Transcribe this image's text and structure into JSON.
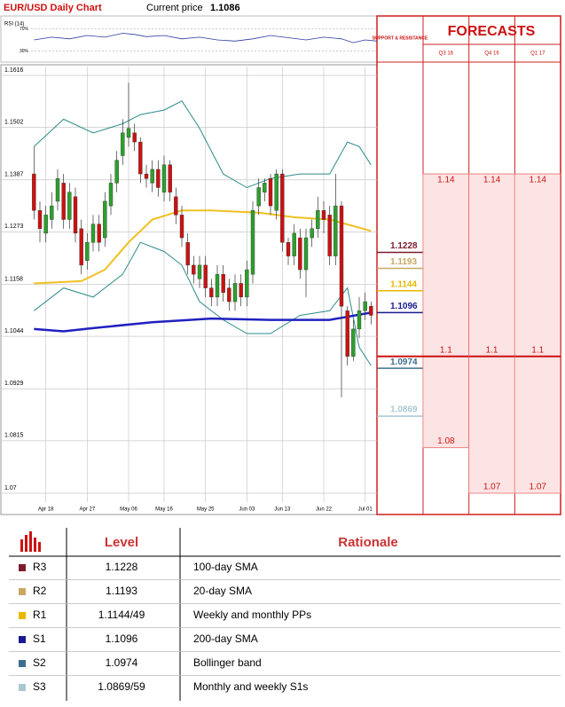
{
  "chart_data": {
    "type": "candlestick",
    "title": "EUR/USD Daily Chart",
    "current_price_label": "Current price",
    "current_price": 1.1086,
    "up_color": "#2ca02c",
    "down_color": "#cc1111",
    "ylim": [
      1.07,
      1.1616
    ],
    "yticks": [
      1.1616,
      1.1502,
      1.1387,
      1.1273,
      1.1158,
      1.1044,
      1.0929,
      1.0815,
      1.07
    ],
    "grid": true,
    "xlim": [
      -0.5,
      58
    ],
    "xticks": [
      {
        "value": 2,
        "label": "Apr 18"
      },
      {
        "value": 9,
        "label": "Apr 27"
      },
      {
        "value": 16,
        "label": "May 06"
      },
      {
        "value": 22,
        "label": "May 16"
      },
      {
        "value": 29,
        "label": "May 25"
      },
      {
        "value": 36,
        "label": "Jun 03"
      },
      {
        "value": 42,
        "label": "Jun 13"
      },
      {
        "value": 49,
        "label": "Jun 22"
      },
      {
        "value": 56,
        "label": "Jul 01"
      }
    ],
    "open": [
      1.14,
      1.132,
      1.127,
      1.13,
      1.134,
      1.138,
      1.13,
      1.135,
      1.128,
      1.121,
      1.125,
      1.129,
      1.126,
      1.133,
      1.138,
      1.144,
      1.148,
      1.149,
      1.147,
      1.14,
      1.138,
      1.141,
      1.136,
      1.142,
      1.135,
      1.131,
      1.125,
      1.12,
      1.117,
      1.12,
      1.115,
      1.113,
      1.118,
      1.115,
      1.112,
      1.116,
      1.113,
      1.118,
      1.133,
      1.136,
      1.139,
      1.132,
      1.14,
      1.125,
      1.122,
      1.126,
      1.119,
      1.126,
      1.128,
      1.132,
      1.131,
      1.122,
      1.133,
      1.11,
      1.1,
      1.106,
      1.11,
      1.111
    ],
    "high": [
      1.146,
      1.134,
      1.133,
      1.136,
      1.141,
      1.14,
      1.138,
      1.137,
      1.13,
      1.127,
      1.131,
      1.131,
      1.136,
      1.14,
      1.145,
      1.152,
      1.16,
      1.151,
      1.148,
      1.142,
      1.143,
      1.143,
      1.144,
      1.143,
      1.137,
      1.133,
      1.127,
      1.122,
      1.122,
      1.122,
      1.117,
      1.12,
      1.12,
      1.117,
      1.118,
      1.118,
      1.121,
      1.134,
      1.139,
      1.139,
      1.14,
      1.141,
      1.141,
      1.126,
      1.129,
      1.128,
      1.128,
      1.13,
      1.135,
      1.134,
      1.133,
      1.14,
      1.134,
      1.111,
      1.108,
      1.113,
      1.114,
      1.112
    ],
    "low": [
      1.13,
      1.125,
      1.125,
      1.128,
      1.132,
      1.128,
      1.128,
      1.125,
      1.118,
      1.119,
      1.123,
      1.123,
      1.124,
      1.131,
      1.136,
      1.142,
      1.146,
      1.145,
      1.138,
      1.137,
      1.136,
      1.135,
      1.134,
      1.134,
      1.129,
      1.124,
      1.118,
      1.116,
      1.115,
      1.113,
      1.111,
      1.111,
      1.112,
      1.11,
      1.11,
      1.111,
      1.111,
      1.116,
      1.131,
      1.134,
      1.131,
      1.13,
      1.123,
      1.12,
      1.12,
      1.117,
      1.113,
      1.124,
      1.126,
      1.127,
      1.12,
      1.12,
      1.091,
      1.098,
      1.099,
      1.104,
      1.108,
      1.107
    ],
    "close": [
      1.132,
      1.128,
      1.131,
      1.133,
      1.139,
      1.13,
      1.136,
      1.127,
      1.12,
      1.125,
      1.129,
      1.125,
      1.134,
      1.138,
      1.143,
      1.149,
      1.15,
      1.147,
      1.14,
      1.139,
      1.141,
      1.137,
      1.142,
      1.136,
      1.131,
      1.126,
      1.12,
      1.118,
      1.12,
      1.115,
      1.113,
      1.118,
      1.114,
      1.112,
      1.116,
      1.113,
      1.119,
      1.132,
      1.137,
      1.138,
      1.133,
      1.14,
      1.125,
      1.122,
      1.127,
      1.119,
      1.126,
      1.128,
      1.132,
      1.13,
      1.122,
      1.133,
      1.111,
      1.1,
      1.106,
      1.11,
      1.112,
      1.109
    ],
    "series": [
      {
        "color": "#2e8b8b",
        "width": 1,
        "x": [
          0,
          5,
          10,
          15,
          18,
          22,
          25,
          28,
          32,
          36,
          40,
          45,
          50,
          53,
          55,
          57
        ],
        "values": [
          1.146,
          1.152,
          1.149,
          1.151,
          1.153,
          1.154,
          1.156,
          1.15,
          1.14,
          1.137,
          1.139,
          1.14,
          1.14,
          1.147,
          1.146,
          1.142
        ]
      },
      {
        "color": "#2e8b8b",
        "width": 1,
        "x": [
          0,
          5,
          10,
          15,
          18,
          22,
          25,
          28,
          32,
          36,
          40,
          45,
          50,
          53,
          55,
          57
        ],
        "values": [
          1.11,
          1.115,
          1.113,
          1.118,
          1.125,
          1.123,
          1.12,
          1.112,
          1.108,
          1.105,
          1.105,
          1.109,
          1.11,
          1.115,
          1.102,
          1.098
        ]
      },
      {
        "color": "#f0c020",
        "width": 2,
        "x": [
          0,
          8,
          12,
          16,
          20,
          25,
          30,
          38,
          44,
          50,
          57
        ],
        "values": [
          1.116,
          1.1165,
          1.119,
          1.125,
          1.13,
          1.132,
          1.132,
          1.1315,
          1.1305,
          1.13,
          1.1275
        ]
      },
      {
        "color": "#2020c0",
        "width": 2.5,
        "x": [
          0,
          5,
          10,
          20,
          30,
          40,
          50,
          57
        ],
        "values": [
          1.106,
          1.1055,
          1.1062,
          1.1075,
          1.1083,
          1.108,
          1.108,
          1.1096
        ]
      }
    ],
    "rsi": {
      "label": "RSI (14)",
      "ylim": [
        10,
        90
      ],
      "yticks": [
        {
          "value": 70,
          "label": "70%"
        },
        {
          "value": 30,
          "label": "30%"
        }
      ],
      "color": "#2a3aa0",
      "x": [
        0,
        3,
        6,
        9,
        12,
        15,
        17,
        19,
        22,
        25,
        28,
        31,
        34,
        37,
        40,
        43,
        46,
        49,
        52,
        54,
        56,
        58
      ],
      "values": [
        50,
        55,
        52,
        58,
        55,
        62,
        60,
        56,
        58,
        52,
        55,
        50,
        48,
        52,
        58,
        54,
        50,
        55,
        52,
        45,
        50,
        48
      ]
    },
    "levels": {
      "label": "SUPPORT & RESISTANCE",
      "values": [
        1.1228,
        1.1193,
        1.1144,
        1.1096,
        1.0974,
        1.0869
      ],
      "colors": [
        "#7b1c2c",
        "#c8a860",
        "#e8b800",
        "#1a1a90",
        "#3e6e8e",
        "#a8c8d0"
      ]
    },
    "forecasts": {
      "title": "FORECASTS",
      "quarters": [
        "Q3 16",
        "Q4 16",
        "Q1 17"
      ],
      "values": [
        [
          1.14,
          1.1,
          1.08
        ],
        [
          1.14,
          1.1,
          1.07
        ],
        [
          1.14,
          1.1,
          1.07
        ]
      ]
    }
  },
  "table": {
    "headers": [
      "Level",
      "Rationale"
    ],
    "rows": [
      [
        "R3",
        "1.1228",
        "100-day SMA"
      ],
      [
        "R2",
        "1.1193",
        "20-day SMA"
      ],
      [
        "R1",
        "1.1144/49",
        "Weekly and monthly PPs"
      ],
      [
        "S1",
        "1.1096",
        "200-day SMA"
      ],
      [
        "S2",
        "1.0974",
        "Bollinger band"
      ],
      [
        "S3",
        "1.0869/59",
        "Monthly  and weekly S1s"
      ]
    ],
    "colors": [
      "#7b1c2c",
      "#c8a860",
      "#e8b800",
      "#1a1a90",
      "#3e6e8e",
      "#a8c8d0"
    ]
  }
}
